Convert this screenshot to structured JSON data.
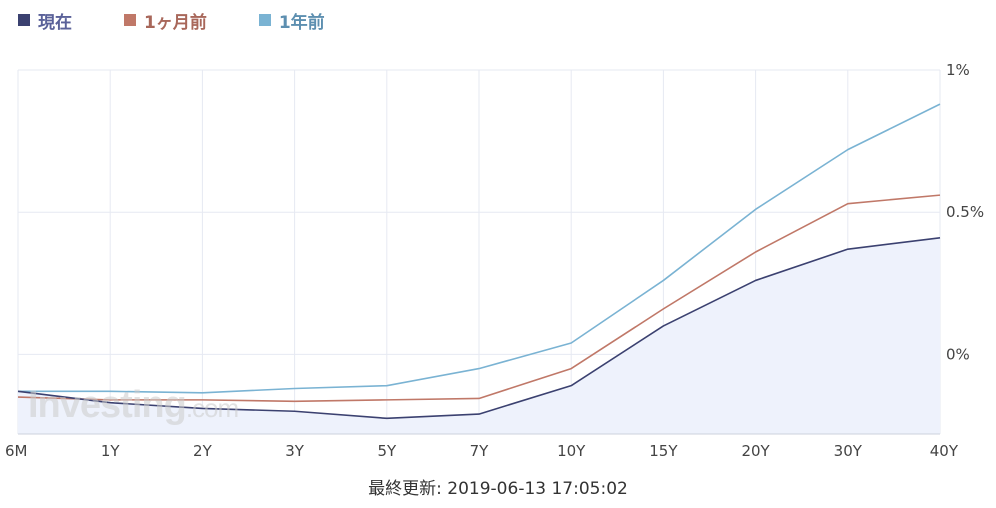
{
  "legend": [
    {
      "label": "現在",
      "color": "#3b4170",
      "text_color": "#5a6199"
    },
    {
      "label": "1ヶ月前",
      "color": "#c07868",
      "text_color": "#a8675a"
    },
    {
      "label": "1年前",
      "color": "#7ab3d3",
      "text_color": "#5d8fb0"
    }
  ],
  "watermark": {
    "main": "Investing",
    "suffix": ".com"
  },
  "footer": "最終更新: 2019-06-13 17:05:02",
  "chart_data": {
    "type": "line",
    "categories": [
      "6M",
      "1Y",
      "2Y",
      "3Y",
      "5Y",
      "7Y",
      "10Y",
      "15Y",
      "20Y",
      "30Y",
      "40Y"
    ],
    "yticks": [
      "1%",
      "0.5%",
      "0%"
    ],
    "ytick_values": [
      1.0,
      0.5,
      0.0
    ],
    "ylim": [
      -0.28,
      1.0
    ],
    "series": [
      {
        "name": "1年前",
        "color": "#7ab3d3",
        "values": [
          -0.13,
          -0.13,
          -0.135,
          -0.12,
          -0.11,
          -0.05,
          0.04,
          0.26,
          0.51,
          0.72,
          0.88
        ]
      },
      {
        "name": "1ヶ月前",
        "color": "#c07868",
        "values": [
          -0.15,
          -0.16,
          -0.16,
          -0.165,
          -0.16,
          -0.155,
          -0.05,
          0.16,
          0.36,
          0.53,
          0.56
        ]
      },
      {
        "name": "現在",
        "color": "#3b4170",
        "fill": "#eef2fc",
        "values": [
          -0.13,
          -0.17,
          -0.19,
          -0.2,
          -0.225,
          -0.21,
          -0.11,
          0.1,
          0.26,
          0.37,
          0.41
        ]
      }
    ]
  }
}
